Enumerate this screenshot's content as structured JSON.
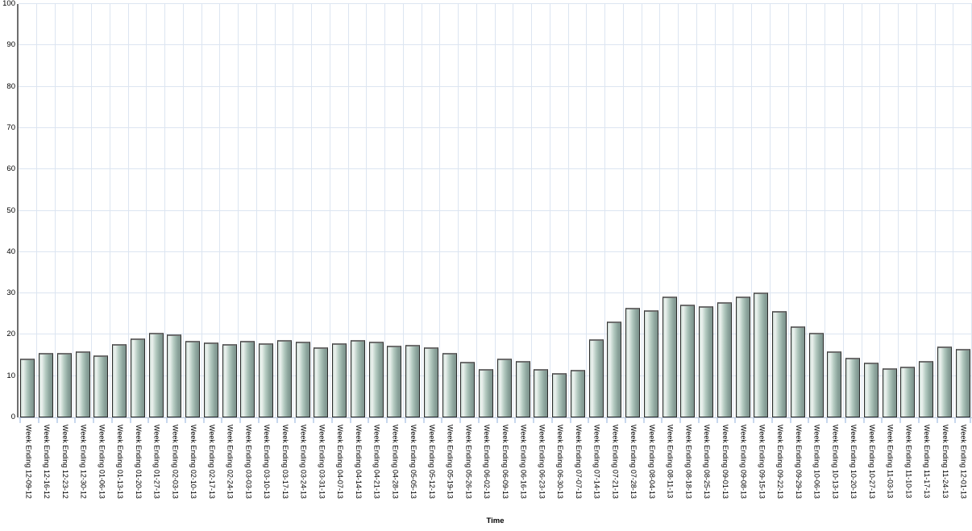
{
  "chart_data": {
    "type": "bar",
    "title": "",
    "xlabel": "Time",
    "ylabel": "",
    "ylim": [
      0,
      100
    ],
    "y_ticks": [
      0,
      10,
      20,
      30,
      40,
      50,
      60,
      70,
      80,
      90,
      100
    ],
    "grid": true,
    "legend": "none",
    "categories": [
      "Week Ending 12-09-12",
      "Week Ending 12-16-12",
      "Week Ending 12-23-12",
      "Week Ending 12-30-12",
      "Week Ending 01-06-13",
      "Week Ending 01-13-13",
      "Week Ending 01-20-13",
      "Week Ending 01-27-13",
      "Week Ending 02-03-13",
      "Week Ending 02-10-13",
      "Week Ending 02-17-13",
      "Week Ending 02-24-13",
      "Week Ending 03-03-13",
      "Week Ending 03-10-13",
      "Week Ending 03-17-13",
      "Week Ending 03-24-13",
      "Week Ending 03-31-13",
      "Week Ending 04-07-13",
      "Week Ending 04-14-13",
      "Week Ending 04-21-13",
      "Week Ending 04-28-13",
      "Week Ending 05-05-13",
      "Week Ending 05-12-13",
      "Week Ending 05-19-13",
      "Week Ending 05-26-13",
      "Week Ending 06-02-13",
      "Week Ending 06-09-13",
      "Week Ending 06-16-13",
      "Week Ending 06-23-13",
      "Week Ending 06-30-13",
      "Week Ending 07-07-13",
      "Week Ending 07-14-13",
      "Week Ending 07-21-13",
      "Week Ending 07-28-13",
      "Week Ending 08-04-13",
      "Week Ending 08-11-13",
      "Week Ending 08-18-13",
      "Week Ending 08-25-13",
      "Week Ending 09-01-13",
      "Week Ending 09-08-13",
      "Week Ending 09-15-13",
      "Week Ending 09-22-13",
      "Week Ending 09-29-13",
      "Week Ending 10-06-13",
      "Week Ending 10-13-13",
      "Week Ending 10-20-13",
      "Week Ending 10-27-13",
      "Week Ending 11-03-13",
      "Week Ending 11-10-13",
      "Week Ending 11-17-13",
      "Week Ending 11-24-13",
      "Week Ending 12-01-13"
    ],
    "values": [
      14.3,
      15.6,
      15.5,
      15.9,
      15.0,
      17.7,
      19.1,
      20.5,
      20.0,
      18.5,
      18.1,
      17.8,
      18.6,
      17.9,
      18.8,
      18.4,
      17.0,
      17.9,
      18.8,
      18.3,
      17.4,
      17.5,
      17.0,
      15.6,
      13.5,
      11.7,
      14.3,
      13.6,
      11.7,
      10.8,
      11.5,
      19.0,
      23.2,
      26.5,
      25.9,
      29.2,
      27.2,
      26.9,
      27.8,
      29.3,
      30.3,
      25.7,
      22.0,
      20.5,
      16.0,
      14.4,
      13.2,
      11.9,
      12.3,
      13.6,
      17.1,
      16.5
    ],
    "colors": {
      "background": "#ffffff",
      "grid_line": "#dce5f1",
      "axis_tick": "#c8d8ee",
      "y_axis_line": "#6e6e6e",
      "bar_outline": "#2b2b2b",
      "bar_gradient": [
        "#c8d8d0",
        "#edf3f0",
        "#b2c9bf",
        "#7b918b"
      ],
      "label_text": "#000000"
    }
  }
}
